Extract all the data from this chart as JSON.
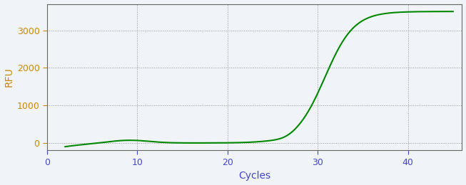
{
  "xlabel": "Cycles",
  "ylabel": "RFU",
  "line_color": "#008800",
  "axis_label_color_x": "#4444cc",
  "axis_label_color_y": "#cc8800",
  "tick_color_x": "#4444cc",
  "tick_color_y": "#cc8800",
  "spine_color": "#666666",
  "background_color": "#f0f4f8",
  "plot_bg_color": "#f0f4f8",
  "grid_color": "#888888",
  "xlim": [
    0,
    46
  ],
  "ylim": [
    -200,
    3700
  ],
  "xticks": [
    0,
    10,
    20,
    30,
    40
  ],
  "yticks": [
    0,
    1000,
    2000,
    3000
  ],
  "sigmoid_L": 3500,
  "sigmoid_k": 0.62,
  "sigmoid_x0": 30.8,
  "x_start": 2,
  "x_end": 45,
  "line_width": 1.5
}
